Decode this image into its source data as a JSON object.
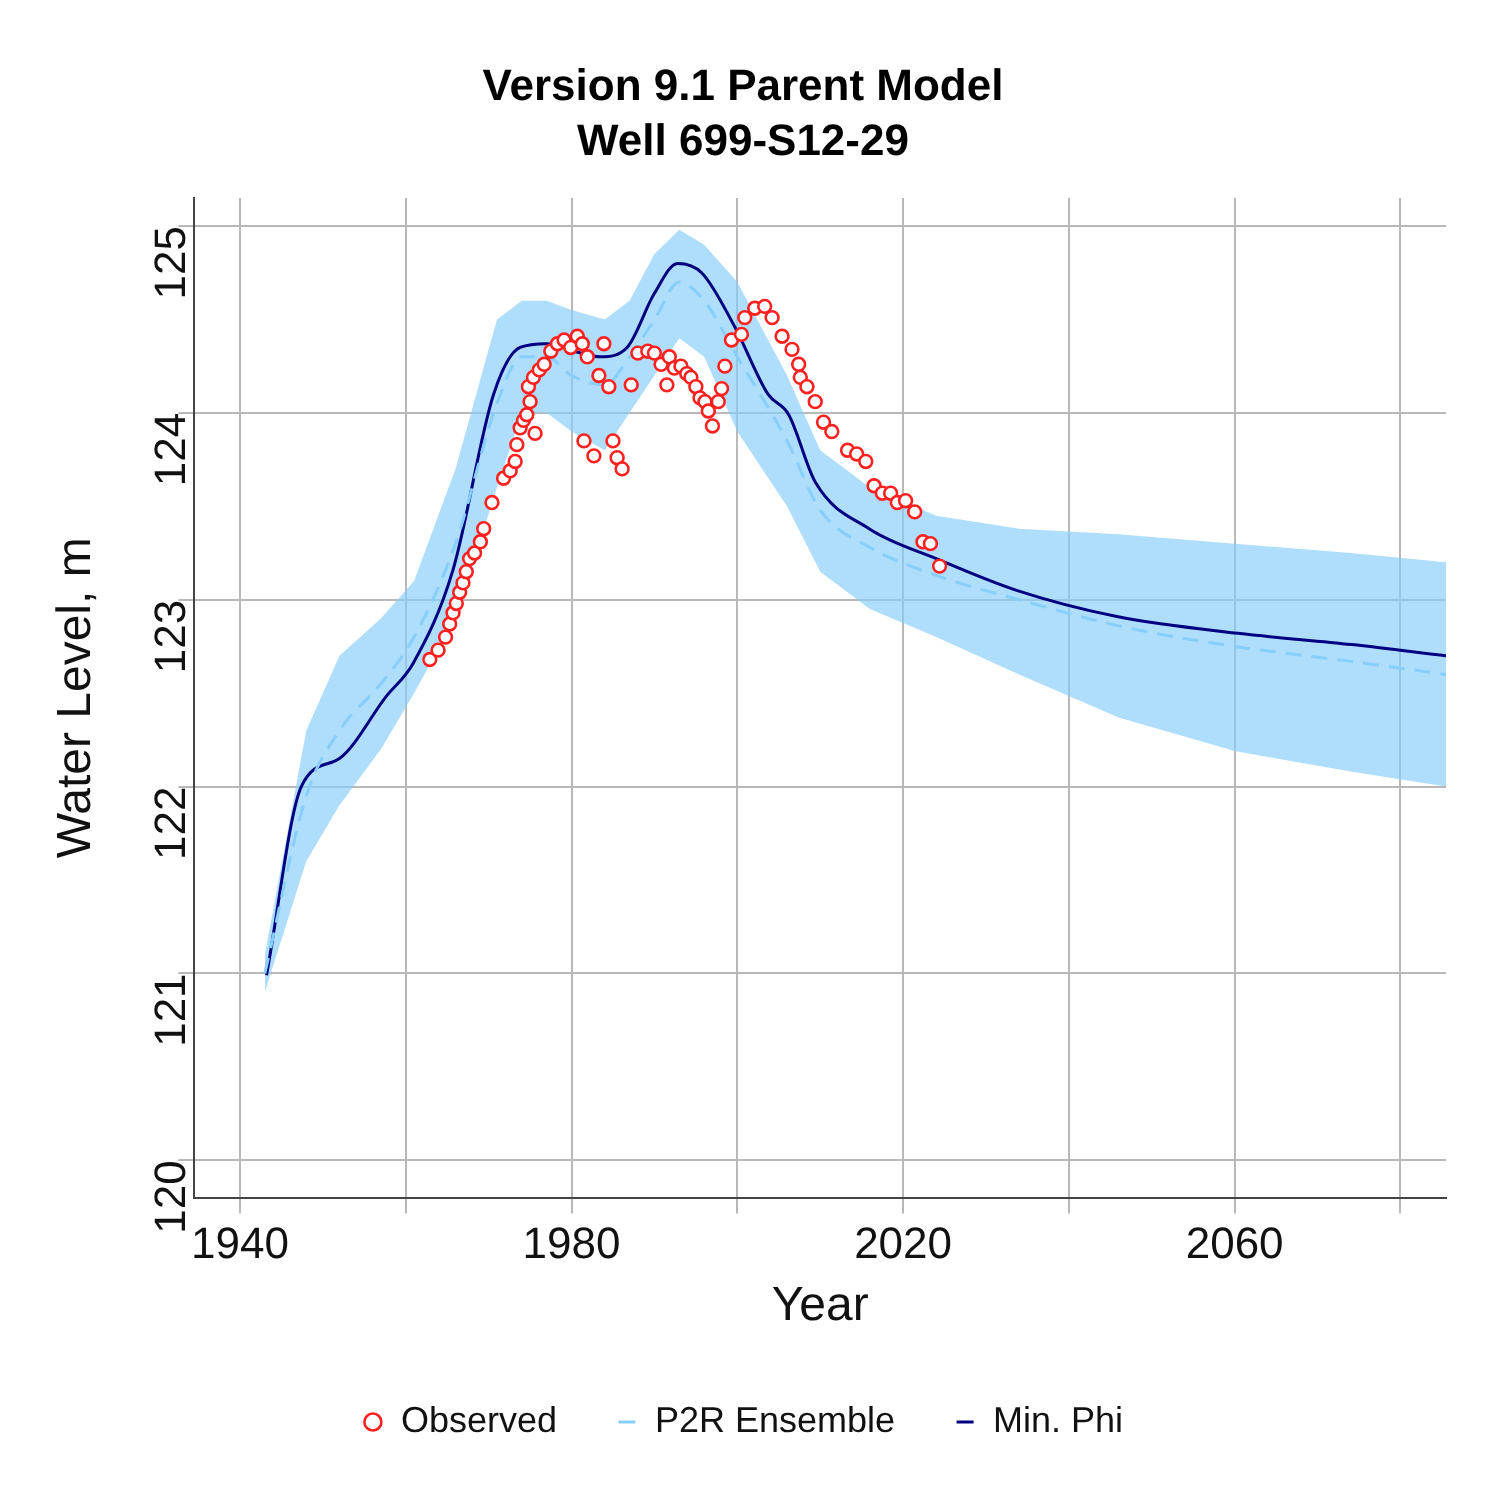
{
  "chart_data": {
    "type": "scatter",
    "title": "Version 9.1 Parent Model",
    "subtitle": "Well 699-S12-29",
    "xlabel": "Year",
    "ylabel": "Water Level, m",
    "xlim": [
      1934.5,
      2085.5
    ],
    "ylim": [
      119.8,
      125.15
    ],
    "xticks": [
      1940,
      {
        "value": 1960,
        "label": null
      },
      1980,
      {
        "value": 2000,
        "label": null
      },
      2020,
      {
        "value": 2040,
        "label": null
      },
      2060,
      {
        "value": 2080,
        "label": null
      }
    ],
    "yticks": [
      120,
      121,
      122,
      123,
      124,
      125
    ],
    "grid": true,
    "legend": "bottom",
    "series": [
      {
        "name": "Observed",
        "type": "scatter",
        "marker": "circle",
        "color": "#ff2020",
        "x": [
          1962.9,
          1963.9,
          1964.8,
          1965.3,
          1965.7,
          1966.1,
          1966.5,
          1966.9,
          1967.3,
          1967.7,
          1968.3,
          1969.0,
          1969.4,
          1970.4,
          1971.8,
          1972.6,
          1973.2,
          1973.4,
          1973.8,
          1974.2,
          1974.6,
          1975.0,
          1975.6,
          1974.8,
          1975.4,
          1976.1,
          1976.7,
          1977.5,
          1978.3,
          1979.1,
          1979.9,
          1980.7,
          1981.3,
          1981.9,
          1983.3,
          1983.9,
          1984.5,
          1981.5,
          1982.7,
          1985.0,
          1985.5,
          1986.1,
          1987.2,
          1988.0,
          1989.2,
          1990.0,
          1990.8,
          1991.5,
          1991.8,
          1992.4,
          1993.2,
          1993.9,
          1994.4,
          1995.0,
          1995.5,
          1996.1,
          1996.5,
          1997.0,
          1997.7,
          1998.1,
          1998.5,
          1999.3,
          2000.5,
          2000.9,
          2002.1,
          2003.3,
          2004.2,
          2005.4,
          2006.6,
          2007.4,
          2007.6,
          2008.4,
          2009.4,
          2010.4,
          2011.4,
          2013.3,
          2014.4,
          2015.5,
          2016.5,
          2017.5,
          2018.5,
          2019.3,
          2020.3,
          2021.4,
          2022.4,
          2023.3,
          2024.4
        ],
        "values": [
          122.68,
          122.73,
          122.8,
          122.87,
          122.93,
          122.98,
          123.04,
          123.09,
          123.15,
          123.22,
          123.25,
          123.31,
          123.38,
          123.52,
          123.65,
          123.69,
          123.74,
          123.83,
          123.92,
          123.96,
          123.99,
          124.06,
          123.89,
          124.14,
          124.19,
          124.23,
          124.26,
          124.33,
          124.37,
          124.39,
          124.35,
          124.41,
          124.37,
          124.3,
          124.2,
          124.37,
          124.14,
          123.85,
          123.77,
          123.85,
          123.76,
          123.7,
          124.15,
          124.32,
          124.33,
          124.32,
          124.26,
          124.15,
          124.3,
          124.24,
          124.25,
          124.21,
          124.19,
          124.14,
          124.08,
          124.06,
          124.01,
          123.93,
          124.06,
          124.13,
          124.25,
          124.39,
          124.42,
          124.51,
          124.56,
          124.57,
          124.51,
          124.41,
          124.34,
          124.26,
          124.19,
          124.14,
          124.06,
          123.95,
          123.9,
          123.8,
          123.78,
          123.74,
          123.61,
          123.57,
          123.57,
          123.52,
          123.53,
          123.47,
          123.31,
          123.3,
          123.18
        ]
      },
      {
        "name": "P2R Ensemble",
        "type": "line",
        "line_style": "dashed",
        "color": "#87cefa",
        "x": [
          1943,
          1948,
          1952,
          1957,
          1961,
          1966,
          1971,
          1974,
          1977,
          1980,
          1984,
          1987,
          1990,
          1993,
          1996,
          2000,
          2006,
          2010,
          2016,
          2024,
          2034,
          2046,
          2060,
          2074,
          2085.5
        ],
        "values": [
          121,
          121.95,
          122.3,
          122.55,
          122.8,
          123.3,
          124.05,
          124.3,
          124.3,
          124.2,
          124.15,
          124.3,
          124.5,
          124.7,
          124.6,
          124.3,
          123.85,
          123.48,
          123.28,
          123.13,
          123,
          122.86,
          122.75,
          122.67,
          122.6
        ],
        "lower": [
          120.9,
          121.6,
          121.9,
          122.2,
          122.5,
          122.9,
          123.6,
          124,
          124,
          123.9,
          123.8,
          124,
          124.2,
          124.4,
          124.3,
          123.9,
          123.5,
          123.15,
          122.95,
          122.8,
          122.6,
          122.37,
          122.19,
          122.08,
          122
        ],
        "upper": [
          121.1,
          122.3,
          122.7,
          122.9,
          123.1,
          123.7,
          124.5,
          124.6,
          124.6,
          124.55,
          124.5,
          124.6,
          124.85,
          124.98,
          124.9,
          124.7,
          124.2,
          123.8,
          123.6,
          123.45,
          123.38,
          123.35,
          123.3,
          123.25,
          123.2
        ]
      },
      {
        "name": "Min. Phi",
        "type": "line",
        "line_style": "solid",
        "marker": "none",
        "color": "#000080",
        "x": [
          1943.2,
          1947.4,
          1952,
          1957.6,
          1960.9,
          1965.7,
          1970.6,
          1973.8,
          1977,
          1980.3,
          1983.5,
          1986.7,
          1990,
          1992.8,
          1995.7,
          1999.7,
          2003.7,
          2006.2,
          2009.4,
          2015.9,
          2024,
          2033.7,
          2045.8,
          2060.4,
          2074.1,
          2085.5
        ],
        "values": [
          120.99,
          122,
          122.15,
          122.48,
          122.66,
          123.16,
          124.1,
          124.35,
          124.37,
          124.33,
          124.3,
          124.35,
          124.64,
          124.8,
          124.75,
          124.46,
          124.1,
          123.99,
          123.63,
          123.38,
          123.22,
          123.05,
          122.91,
          122.82,
          122.76,
          122.7
        ]
      }
    ]
  }
}
